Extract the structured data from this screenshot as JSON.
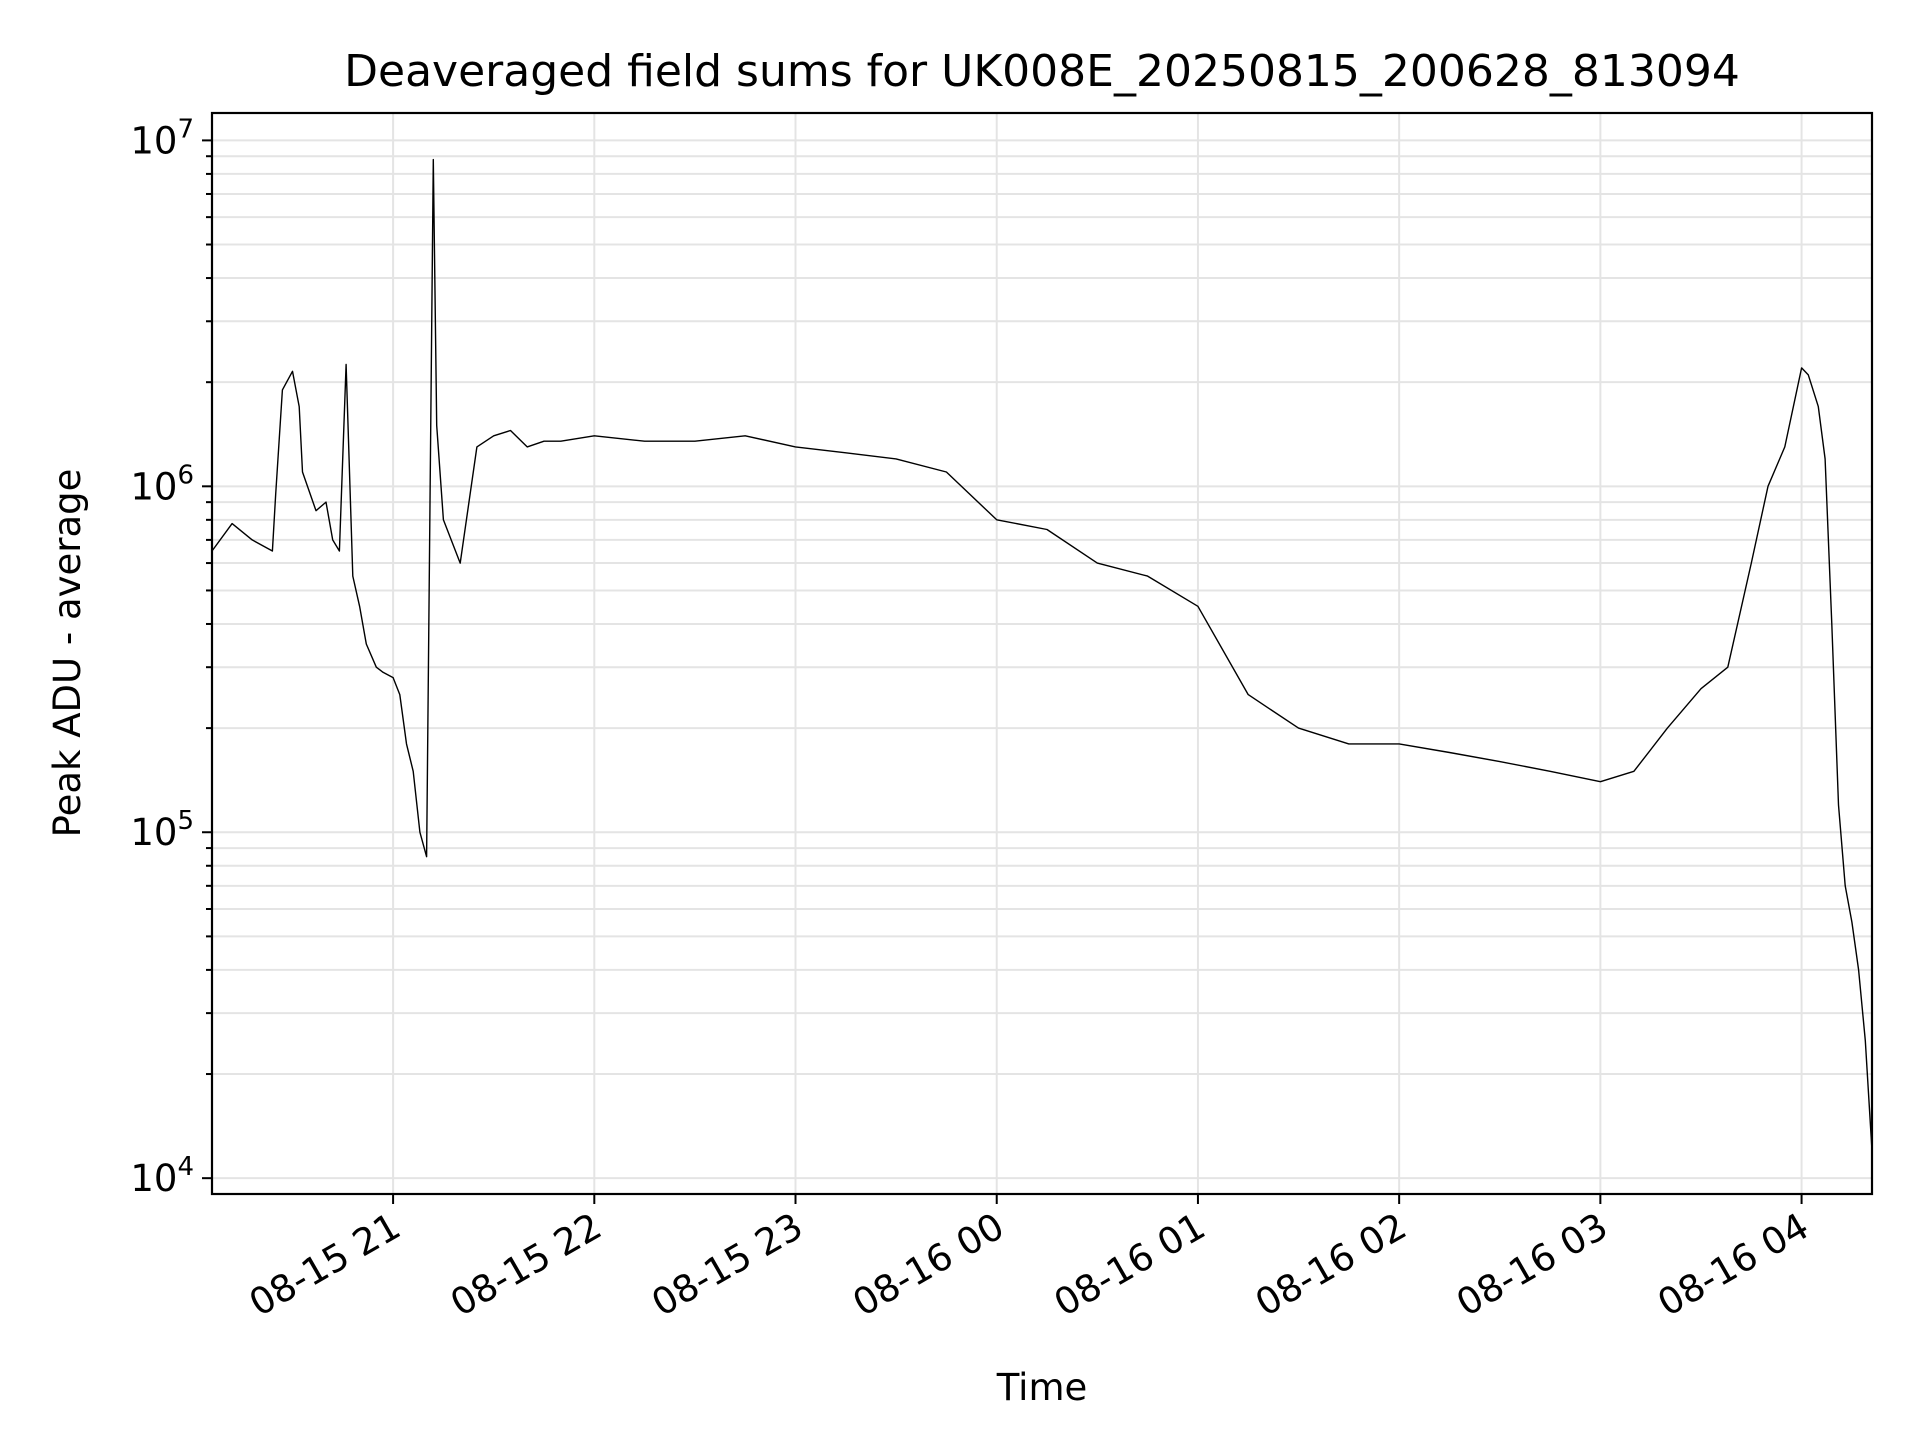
{
  "chart_data": {
    "type": "line",
    "title": "Deaveraged field sums for UK008E_20250815_200628_813094",
    "xlabel": "Time",
    "ylabel": "Peak ADU - average",
    "yscale": "log",
    "ylim": [
      9000,
      12000000
    ],
    "xlim": [
      "2025-08-15 20:06",
      "2025-08-16 04:21"
    ],
    "grid": true,
    "line_color": "#000000",
    "x_ticks": [
      {
        "t": "2025-08-15 21:00",
        "label": "08-15 21"
      },
      {
        "t": "2025-08-15 22:00",
        "label": "08-15 22"
      },
      {
        "t": "2025-08-15 23:00",
        "label": "08-15 23"
      },
      {
        "t": "2025-08-16 00:00",
        "label": "08-16 00"
      },
      {
        "t": "2025-08-16 01:00",
        "label": "08-16 01"
      },
      {
        "t": "2025-08-16 02:00",
        "label": "08-16 02"
      },
      {
        "t": "2025-08-16 03:00",
        "label": "08-16 03"
      },
      {
        "t": "2025-08-16 04:00",
        "label": "08-16 04"
      }
    ],
    "y_ticks": [
      {
        "value": 10000,
        "base": "10",
        "exp": "4"
      },
      {
        "value": 100000,
        "base": "10",
        "exp": "5"
      },
      {
        "value": 1000000,
        "base": "10",
        "exp": "6"
      },
      {
        "value": 10000000,
        "base": "10",
        "exp": "7"
      }
    ],
    "series": [
      {
        "x": [
          "2025-08-15 20:06",
          "2025-08-15 20:12",
          "2025-08-15 20:18",
          "2025-08-15 20:24",
          "2025-08-15 20:25",
          "2025-08-15 20:27",
          "2025-08-15 20:30",
          "2025-08-15 20:32",
          "2025-08-15 20:33",
          "2025-08-15 20:37",
          "2025-08-15 20:40",
          "2025-08-15 20:42",
          "2025-08-15 20:44",
          "2025-08-15 20:46",
          "2025-08-15 20:48",
          "2025-08-15 20:50",
          "2025-08-15 20:52",
          "2025-08-15 20:55",
          "2025-08-15 20:57",
          "2025-08-15 21:00",
          "2025-08-15 21:02",
          "2025-08-15 21:04",
          "2025-08-15 21:06",
          "2025-08-15 21:08",
          "2025-08-15 21:10",
          "2025-08-15 21:12",
          "2025-08-15 21:13",
          "2025-08-15 21:15",
          "2025-08-15 21:20",
          "2025-08-15 21:25",
          "2025-08-15 21:30",
          "2025-08-15 21:35",
          "2025-08-15 21:40",
          "2025-08-15 21:45",
          "2025-08-15 21:50",
          "2025-08-15 22:00",
          "2025-08-15 22:15",
          "2025-08-15 22:30",
          "2025-08-15 22:45",
          "2025-08-15 23:00",
          "2025-08-15 23:15",
          "2025-08-15 23:30",
          "2025-08-15 23:45",
          "2025-08-16 00:00",
          "2025-08-16 00:15",
          "2025-08-16 00:30",
          "2025-08-16 00:45",
          "2025-08-16 01:00",
          "2025-08-16 01:15",
          "2025-08-16 01:30",
          "2025-08-16 01:45",
          "2025-08-16 02:00",
          "2025-08-16 02:15",
          "2025-08-16 02:30",
          "2025-08-16 02:45",
          "2025-08-16 03:00",
          "2025-08-16 03:10",
          "2025-08-16 03:20",
          "2025-08-16 03:30",
          "2025-08-16 03:38",
          "2025-08-16 03:45",
          "2025-08-16 03:50",
          "2025-08-16 03:55",
          "2025-08-16 04:00",
          "2025-08-16 04:02",
          "2025-08-16 04:05",
          "2025-08-16 04:07",
          "2025-08-16 04:09",
          "2025-08-16 04:11",
          "2025-08-16 04:13",
          "2025-08-16 04:15",
          "2025-08-16 04:17",
          "2025-08-16 04:19",
          "2025-08-16 04:21"
        ],
        "y": [
          650000,
          780000,
          700000,
          650000,
          950000,
          1900000,
          2150000,
          1700000,
          1100000,
          850000,
          900000,
          700000,
          650000,
          2250000,
          550000,
          450000,
          350000,
          300000,
          290000,
          280000,
          250000,
          180000,
          150000,
          100000,
          85000,
          8800000,
          1500000,
          800000,
          600000,
          1300000,
          1400000,
          1450000,
          1300000,
          1350000,
          1350000,
          1400000,
          1350000,
          1350000,
          1400000,
          1300000,
          1250000,
          1200000,
          1100000,
          800000,
          750000,
          600000,
          550000,
          450000,
          250000,
          200000,
          180000,
          180000,
          170000,
          160000,
          150000,
          140000,
          150000,
          200000,
          260000,
          300000,
          600000,
          1000000,
          1300000,
          2200000,
          2100000,
          1700000,
          1200000,
          400000,
          120000,
          70000,
          55000,
          40000,
          25000,
          12000
        ]
      }
    ]
  }
}
